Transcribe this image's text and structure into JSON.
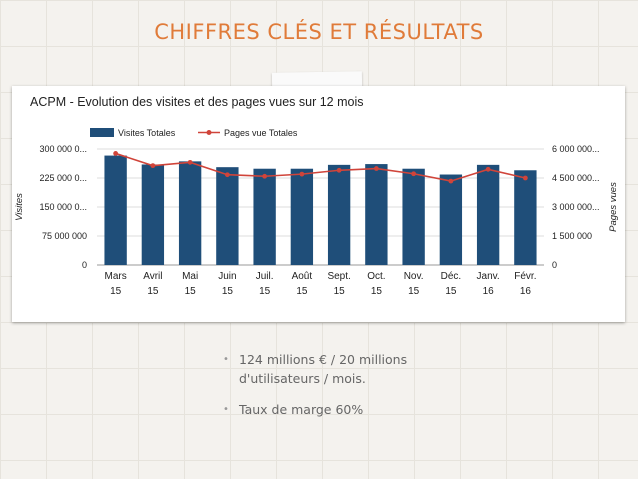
{
  "slide": {
    "title": "CHIFFRES CLÉS ET RÉSULTATS",
    "bullets": [
      "124  millions € / 20 millions d'utilisateurs / mois.",
      "Taux de marge 60%"
    ]
  },
  "colors": {
    "title": "#e07b39",
    "bar": "#1f4e79",
    "line": "#d0443a"
  },
  "chart_data": {
    "type": "bar",
    "title": "ACPM - Evolution des visites et des pages vues sur 12 mois",
    "categories": [
      [
        "Mars",
        "15"
      ],
      [
        "Avril",
        "15"
      ],
      [
        "Mai",
        "15"
      ],
      [
        "Juin",
        "15"
      ],
      [
        "Juil.",
        "15"
      ],
      [
        "Août",
        "15"
      ],
      [
        "Sept.",
        "15"
      ],
      [
        "Oct.",
        "15"
      ],
      [
        "Nov.",
        "15"
      ],
      [
        "Déc.",
        "15"
      ],
      [
        "Janv.",
        "16"
      ],
      [
        "Févr.",
        "16"
      ]
    ],
    "series": [
      {
        "name": "Visites Totales",
        "type": "bar",
        "axis": "left",
        "values": [
          283000000,
          260000000,
          268000000,
          253000000,
          249000000,
          249000000,
          259000000,
          261000000,
          249000000,
          234000000,
          259000000,
          245000000
        ]
      },
      {
        "name": "Pages vue Totales",
        "type": "line",
        "axis": "right",
        "values": [
          5770000,
          5140000,
          5310000,
          4670000,
          4590000,
          4700000,
          4900000,
          4990000,
          4720000,
          4340000,
          4950000,
          4500000
        ]
      }
    ],
    "ylabel": "Visites",
    "ylabel_right": "Pages vues",
    "ylim": [
      0,
      300000000
    ],
    "ylim_right": [
      0,
      6000000
    ],
    "yticks": [
      "0",
      "75 000 000",
      "150 000 0...",
      "225 000 0...",
      "300 000 0..."
    ],
    "yticks_right": [
      "0",
      "1 500 000",
      "3 000 000...",
      "4 500 000...",
      "6 000 000..."
    ],
    "grid": true,
    "legend": "top-left"
  }
}
